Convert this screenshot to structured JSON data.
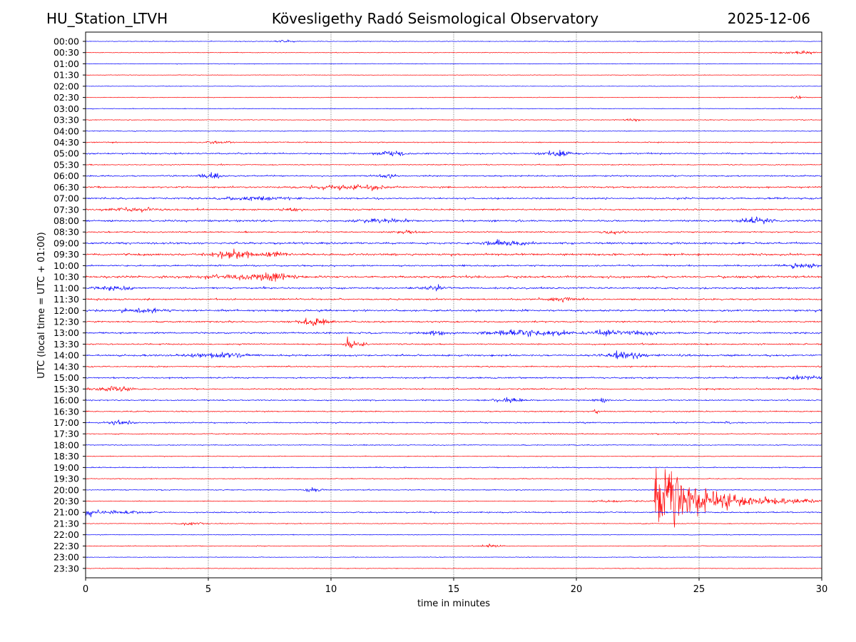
{
  "header": {
    "station": "HU_Station_LTVH",
    "observatory": "Kövesligethy Radó Seismological Observatory",
    "date": "2025-12-06"
  },
  "chart_data": {
    "type": "line",
    "title": "Kövesligethy Radó Seismological Observatory",
    "xlabel": "time in minutes",
    "ylabel": "UTC (local time = UTC + 01:00)",
    "xlim": [
      0,
      30
    ],
    "xticks": [
      "0",
      "5",
      "10",
      "15",
      "20",
      "25",
      "30"
    ],
    "xtick_values": [
      0,
      5,
      10,
      15,
      20,
      25,
      30
    ],
    "grid": "vertical dotted at x ticks",
    "series_colors": [
      "#0000ff",
      "#ff0000"
    ],
    "rows": [
      {
        "label": "00:00",
        "noise": 0.5,
        "bursts": [
          [
            8.1,
            0.4,
            1.2
          ]
        ]
      },
      {
        "label": "00:30",
        "noise": 0.5,
        "bursts": [
          [
            29.0,
            0.8,
            1.5
          ]
        ]
      },
      {
        "label": "01:00",
        "noise": 0.5,
        "bursts": []
      },
      {
        "label": "01:30",
        "noise": 0.4,
        "bursts": []
      },
      {
        "label": "02:00",
        "noise": 0.4,
        "bursts": []
      },
      {
        "label": "02:30",
        "noise": 0.5,
        "bursts": [
          [
            29.0,
            0.2,
            3.5
          ]
        ]
      },
      {
        "label": "03:00",
        "noise": 0.5,
        "bursts": []
      },
      {
        "label": "03:30",
        "noise": 0.6,
        "bursts": [
          [
            22.3,
            0.3,
            2.0
          ]
        ]
      },
      {
        "label": "04:00",
        "noise": 0.6,
        "bursts": []
      },
      {
        "label": "04:30",
        "noise": 0.8,
        "bursts": [
          [
            5.5,
            0.5,
            1.5
          ]
        ]
      },
      {
        "label": "05:00",
        "noise": 1.2,
        "bursts": [
          [
            12.5,
            0.6,
            1.8
          ],
          [
            19.3,
            0.6,
            2.5
          ]
        ]
      },
      {
        "label": "05:30",
        "noise": 0.8,
        "bursts": []
      },
      {
        "label": "06:00",
        "noise": 1.1,
        "bursts": [
          [
            5.0,
            0.5,
            2.5
          ],
          [
            12.2,
            0.4,
            1.8
          ]
        ]
      },
      {
        "label": "06:30",
        "noise": 1.2,
        "bursts": [
          [
            10.0,
            0.8,
            1.8
          ],
          [
            11.7,
            0.8,
            2.0
          ]
        ]
      },
      {
        "label": "07:00",
        "noise": 1.3,
        "bursts": [
          [
            7.0,
            1.5,
            1.6
          ]
        ]
      },
      {
        "label": "07:30",
        "noise": 1.2,
        "bursts": [
          [
            2.0,
            1.2,
            1.5
          ],
          [
            8.5,
            0.5,
            1.6
          ]
        ]
      },
      {
        "label": "08:00",
        "noise": 1.4,
        "bursts": [
          [
            12.0,
            1.0,
            2.0
          ],
          [
            27.3,
            0.6,
            3.0
          ]
        ]
      },
      {
        "label": "08:30",
        "noise": 1.1,
        "bursts": [
          [
            13.0,
            0.5,
            1.5
          ],
          [
            21.5,
            0.4,
            1.5
          ]
        ]
      },
      {
        "label": "09:00",
        "noise": 1.5,
        "bursts": [
          [
            17.2,
            0.8,
            2.2
          ]
        ]
      },
      {
        "label": "09:30",
        "noise": 1.6,
        "bursts": [
          [
            6.0,
            0.9,
            3.2
          ],
          [
            7.7,
            0.4,
            2.2
          ]
        ]
      },
      {
        "label": "10:00",
        "noise": 1.2,
        "bursts": [
          [
            29.2,
            0.8,
            1.8
          ]
        ]
      },
      {
        "label": "10:30",
        "noise": 1.7,
        "bursts": [
          [
            6.5,
            1.5,
            2.2
          ],
          [
            7.8,
            0.5,
            2.5
          ]
        ]
      },
      {
        "label": "11:00",
        "noise": 1.4,
        "bursts": [
          [
            1.2,
            0.6,
            2.2
          ],
          [
            14.2,
            0.5,
            2.0
          ]
        ]
      },
      {
        "label": "11:30",
        "noise": 1.2,
        "bursts": [
          [
            19.5,
            0.6,
            2.0
          ]
        ]
      },
      {
        "label": "12:00",
        "noise": 1.5,
        "bursts": [
          [
            2.3,
            0.8,
            2.2
          ]
        ]
      },
      {
        "label": "12:30",
        "noise": 1.2,
        "bursts": [
          [
            9.3,
            0.6,
            3.5
          ]
        ]
      },
      {
        "label": "13:00",
        "noise": 1.4,
        "bursts": [
          [
            14.3,
            0.4,
            2.5
          ],
          [
            17.2,
            1.0,
            2.5
          ],
          [
            19.0,
            1.0,
            2.2
          ],
          [
            21.1,
            0.4,
            3.0
          ],
          [
            22.5,
            0.8,
            2.0
          ]
        ]
      },
      {
        "label": "13:30",
        "noise": 1.1,
        "bursts": [
          [
            10.7,
            0.2,
            4.0
          ],
          [
            11.2,
            0.3,
            2.0
          ]
        ]
      },
      {
        "label": "14:00",
        "noise": 1.4,
        "bursts": [
          [
            5.5,
            1.2,
            2.5
          ],
          [
            22.0,
            0.8,
            3.0
          ]
        ]
      },
      {
        "label": "14:30",
        "noise": 1.0,
        "bursts": []
      },
      {
        "label": "15:00",
        "noise": 1.2,
        "bursts": [
          [
            29.2,
            0.8,
            2.2
          ]
        ]
      },
      {
        "label": "15:30",
        "noise": 1.1,
        "bursts": [
          [
            1.2,
            0.8,
            2.5
          ]
        ]
      },
      {
        "label": "16:00",
        "noise": 1.0,
        "bursts": [
          [
            17.2,
            0.6,
            2.0
          ],
          [
            21.0,
            0.3,
            2.0
          ]
        ]
      },
      {
        "label": "16:30",
        "noise": 0.9,
        "bursts": [
          [
            20.8,
            0.1,
            2.5
          ]
        ]
      },
      {
        "label": "17:00",
        "noise": 1.0,
        "bursts": [
          [
            1.4,
            0.5,
            2.2
          ],
          [
            26.2,
            0.1,
            2.0
          ]
        ]
      },
      {
        "label": "17:30",
        "noise": 0.8,
        "bursts": []
      },
      {
        "label": "18:00",
        "noise": 0.7,
        "bursts": []
      },
      {
        "label": "18:30",
        "noise": 0.6,
        "bursts": []
      },
      {
        "label": "19:00",
        "noise": 0.8,
        "bursts": []
      },
      {
        "label": "19:30",
        "noise": 0.7,
        "bursts": []
      },
      {
        "label": "20:00",
        "noise": 0.7,
        "bursts": [
          [
            9.2,
            0.4,
            1.8
          ]
        ]
      },
      {
        "label": "20:30",
        "noise": 0.6,
        "bursts": [],
        "earthquake": {
          "onset_min": 23.2,
          "peak_amplitude_rows": 6.5,
          "decay_min": 2.2,
          "coda_end_min": 30
        }
      },
      {
        "label": "21:00",
        "noise": 1.0,
        "bursts": [
          [
            0.2,
            0.3,
            2.5
          ],
          [
            1.5,
            1.0,
            1.6
          ]
        ]
      },
      {
        "label": "21:30",
        "noise": 0.6,
        "bursts": [
          [
            4.3,
            0.5,
            1.8
          ]
        ]
      },
      {
        "label": "22:00",
        "noise": 0.5,
        "bursts": []
      },
      {
        "label": "22:30",
        "noise": 0.6,
        "bursts": [
          [
            16.5,
            0.4,
            1.6
          ]
        ]
      },
      {
        "label": "23:00",
        "noise": 0.5,
        "bursts": []
      },
      {
        "label": "23:30",
        "noise": 0.5,
        "bursts": []
      }
    ]
  }
}
